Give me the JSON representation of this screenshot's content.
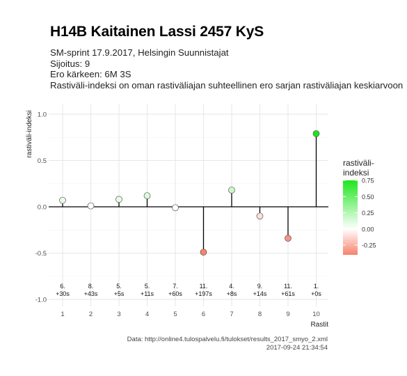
{
  "title": "H14B Kaitainen Lassi 2457 KyS",
  "subtitle_lines": [
    "SM-sprint 17.9.2017, Helsingin Suunnistajat",
    "Sijoitus: 9",
    "Ero kärkeen: 6M 3S",
    "Rastiväli-indeksi on oman rastiväliajan suhteellinen ero sarjan rastiväliajan keskiarvoon"
  ],
  "caption_source": "Data: http://online4.tulospalvelu.fi/tulokset/results_2017_smyo_2.xml",
  "caption_date": "2017-09-24 21:34:54",
  "colors": {
    "low": "#f7826c",
    "mid": "#ffffff",
    "high": "#1ee61e",
    "grid": "#e6e6e6",
    "stem": "#000000"
  },
  "chart_data": {
    "type": "lollipop",
    "xlabel": "Rastit",
    "ylabel": "rastiväli-indeksi",
    "x": [
      1,
      2,
      3,
      4,
      5,
      6,
      7,
      8,
      9,
      10
    ],
    "values": [
      0.07,
      0.01,
      0.08,
      0.12,
      -0.01,
      -0.49,
      0.18,
      -0.1,
      -0.34,
      0.79
    ],
    "point_labels": [
      [
        "6.",
        "+30s"
      ],
      [
        "8.",
        "+43s"
      ],
      [
        "5.",
        "+5s"
      ],
      [
        "5.",
        "+11s"
      ],
      [
        "7.",
        "+60s"
      ],
      [
        "11.",
        "+197s"
      ],
      [
        "4.",
        "+8s"
      ],
      [
        "9.",
        "+14s"
      ],
      [
        "11.",
        "+61s"
      ],
      [
        "1.",
        "+0s"
      ]
    ],
    "ylim": [
      -1.0,
      1.0
    ],
    "yticks": [
      -1.0,
      -0.5,
      0.0,
      0.5,
      1.0
    ],
    "ytick_labels": [
      "-1.0",
      "-0.5",
      "0.0",
      "0.5",
      "1.0"
    ],
    "xticks": [
      "1",
      "2",
      "3",
      "4",
      "5",
      "6",
      "7",
      "8",
      "9",
      "10"
    ],
    "grid": true,
    "legend": {
      "title_lines": [
        "rastiväli-",
        "indeksi"
      ],
      "placement": "right",
      "range": [
        -0.4,
        0.75
      ],
      "ticks": [
        0.75,
        0.5,
        0.25,
        0.0,
        -0.25
      ],
      "tick_labels": [
        "0.75",
        "0.50",
        "0.25",
        "0.00",
        "-0.25"
      ]
    }
  }
}
